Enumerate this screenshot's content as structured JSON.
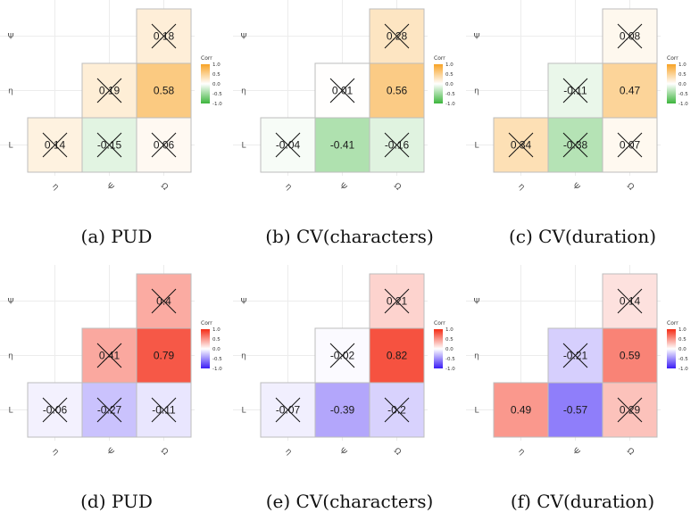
{
  "legend_title": "Corr",
  "legend_ticks": [
    "1.0",
    "0.5",
    "0.0",
    "-0.5",
    "-1.0"
  ],
  "scales": {
    "orange_green": {
      "high": "#F8A325",
      "mid": "#FFFFFF",
      "low": "#3DB53D"
    },
    "red_blue": {
      "high": "#F42C16",
      "mid": "#FFFFFF",
      "low": "#3B1CF6"
    }
  },
  "chart_data": [
    {
      "type": "heatmap",
      "caption": "(a) PUD",
      "scale": "orange_green",
      "x_labels": [
        "η",
        "Ψ",
        "Ω"
      ],
      "y_labels": [
        "Ψ",
        "η",
        "L"
      ],
      "cells": [
        {
          "row": "Ψ",
          "col": "Ω",
          "value": 0.18,
          "crossed": true
        },
        {
          "row": "η",
          "col": "Ψ",
          "value": 0.19,
          "crossed": true
        },
        {
          "row": "η",
          "col": "Ω",
          "value": 0.58,
          "crossed": false
        },
        {
          "row": "L",
          "col": "η",
          "value": 0.14,
          "crossed": true
        },
        {
          "row": "L",
          "col": "Ψ",
          "value": -0.15,
          "crossed": true
        },
        {
          "row": "L",
          "col": "Ω",
          "value": 0.06,
          "crossed": true
        }
      ]
    },
    {
      "type": "heatmap",
      "caption": "(b) CV(characters)",
      "scale": "orange_green",
      "x_labels": [
        "η",
        "Ψ",
        "Ω"
      ],
      "y_labels": [
        "Ψ",
        "η",
        "L"
      ],
      "cells": [
        {
          "row": "Ψ",
          "col": "Ω",
          "value": 0.28,
          "crossed": true
        },
        {
          "row": "η",
          "col": "Ψ",
          "value": 0.01,
          "crossed": true
        },
        {
          "row": "η",
          "col": "Ω",
          "value": 0.56,
          "crossed": false
        },
        {
          "row": "L",
          "col": "η",
          "value": -0.04,
          "crossed": true
        },
        {
          "row": "L",
          "col": "Ψ",
          "value": -0.41,
          "crossed": false
        },
        {
          "row": "L",
          "col": "Ω",
          "value": -0.16,
          "crossed": true
        }
      ]
    },
    {
      "type": "heatmap",
      "caption": "(c) CV(duration)",
      "scale": "orange_green",
      "x_labels": [
        "η",
        "Ψ",
        "Ω"
      ],
      "y_labels": [
        "Ψ",
        "η",
        "L"
      ],
      "cells": [
        {
          "row": "Ψ",
          "col": "Ω",
          "value": 0.08,
          "crossed": true
        },
        {
          "row": "η",
          "col": "Ψ",
          "value": -0.11,
          "crossed": true
        },
        {
          "row": "η",
          "col": "Ω",
          "value": 0.47,
          "crossed": false
        },
        {
          "row": "L",
          "col": "η",
          "value": 0.34,
          "crossed": true
        },
        {
          "row": "L",
          "col": "Ψ",
          "value": -0.38,
          "crossed": true
        },
        {
          "row": "L",
          "col": "Ω",
          "value": 0.07,
          "crossed": true
        }
      ]
    },
    {
      "type": "heatmap",
      "caption": "(d) PUD",
      "scale": "red_blue",
      "x_labels": [
        "η",
        "Ψ",
        "Ω"
      ],
      "y_labels": [
        "Ψ",
        "η",
        "L"
      ],
      "cells": [
        {
          "row": "Ψ",
          "col": "Ω",
          "value": 0.4,
          "crossed": true
        },
        {
          "row": "η",
          "col": "Ψ",
          "value": 0.41,
          "crossed": true
        },
        {
          "row": "η",
          "col": "Ω",
          "value": 0.79,
          "crossed": false
        },
        {
          "row": "L",
          "col": "η",
          "value": -0.06,
          "crossed": true
        },
        {
          "row": "L",
          "col": "Ψ",
          "value": -0.27,
          "crossed": true
        },
        {
          "row": "L",
          "col": "Ω",
          "value": -0.11,
          "crossed": true
        }
      ]
    },
    {
      "type": "heatmap",
      "caption": "(e) CV(characters)",
      "scale": "red_blue",
      "x_labels": [
        "η",
        "Ψ",
        "Ω"
      ],
      "y_labels": [
        "Ψ",
        "η",
        "L"
      ],
      "cells": [
        {
          "row": "Ψ",
          "col": "Ω",
          "value": 0.21,
          "crossed": true
        },
        {
          "row": "η",
          "col": "Ψ",
          "value": -0.02,
          "crossed": true
        },
        {
          "row": "η",
          "col": "Ω",
          "value": 0.82,
          "crossed": false
        },
        {
          "row": "L",
          "col": "η",
          "value": -0.07,
          "crossed": true
        },
        {
          "row": "L",
          "col": "Ψ",
          "value": -0.39,
          "crossed": false
        },
        {
          "row": "L",
          "col": "Ω",
          "value": -0.2,
          "crossed": true
        }
      ]
    },
    {
      "type": "heatmap",
      "caption": "(f) CV(duration)",
      "scale": "red_blue",
      "x_labels": [
        "η",
        "Ψ",
        "Ω"
      ],
      "y_labels": [
        "Ψ",
        "η",
        "L"
      ],
      "cells": [
        {
          "row": "Ψ",
          "col": "Ω",
          "value": 0.14,
          "crossed": true
        },
        {
          "row": "η",
          "col": "Ψ",
          "value": -0.21,
          "crossed": true
        },
        {
          "row": "η",
          "col": "Ω",
          "value": 0.59,
          "crossed": false
        },
        {
          "row": "L",
          "col": "η",
          "value": 0.49,
          "crossed": false
        },
        {
          "row": "L",
          "col": "Ψ",
          "value": -0.57,
          "crossed": false
        },
        {
          "row": "L",
          "col": "Ω",
          "value": 0.29,
          "crossed": true
        }
      ]
    }
  ]
}
